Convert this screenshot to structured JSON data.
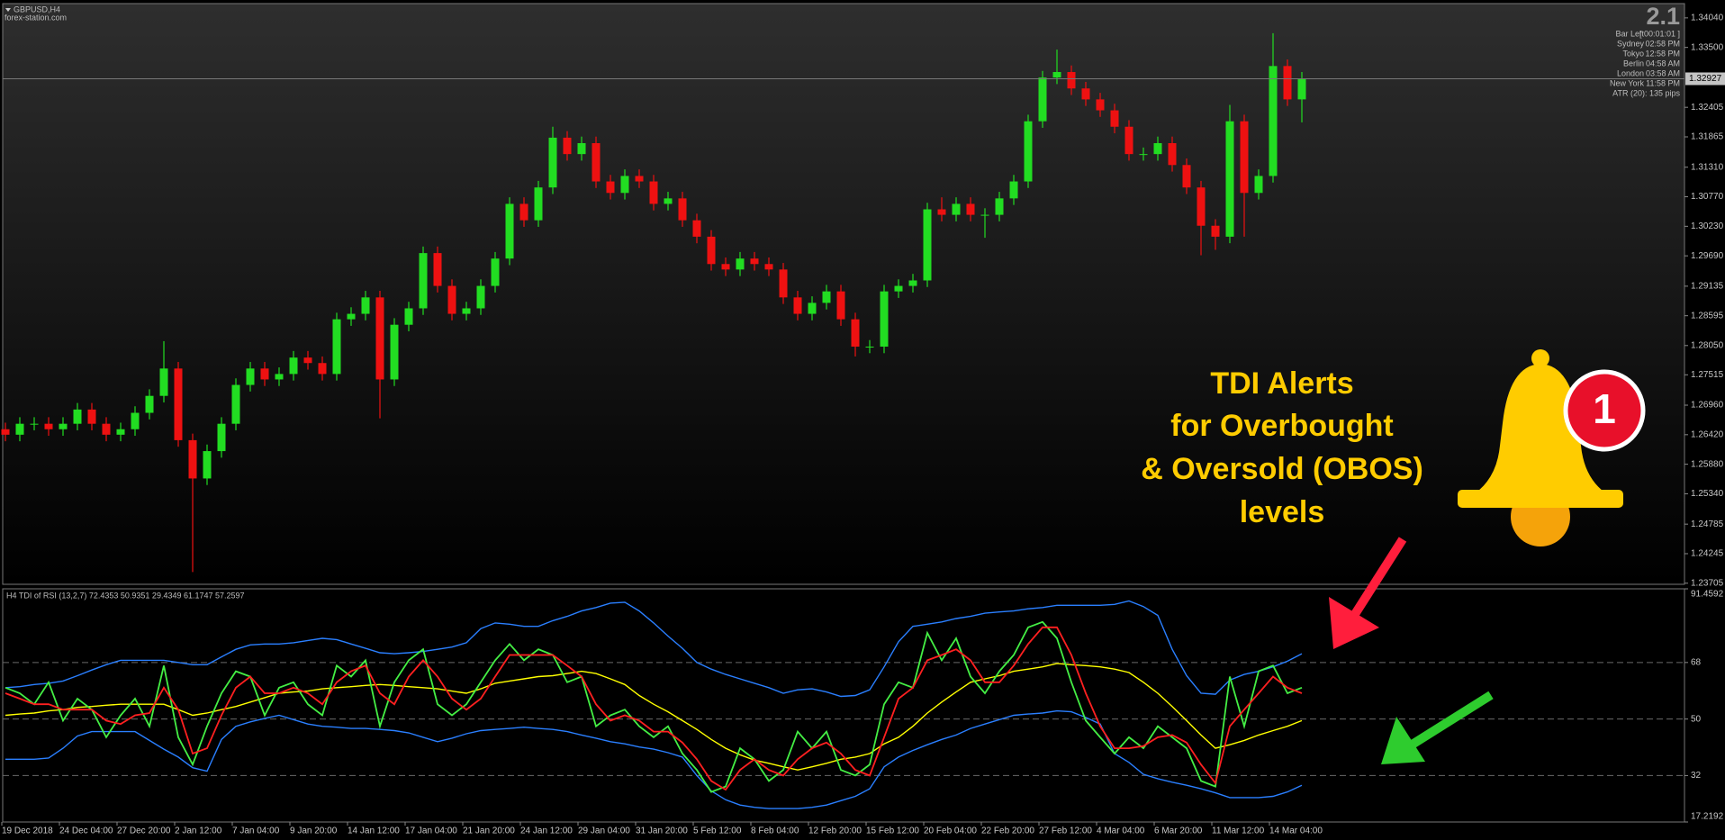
{
  "chart_data": [
    {
      "type": "candlestick",
      "title": "GBPUSD,H4",
      "subtitle": "forex-station.com",
      "up_color": "#22dd22",
      "down_color": "#ee1111",
      "open": [
        1.2652,
        1.2642,
        1.2662,
        1.2662,
        1.2652,
        1.2662,
        1.2688,
        1.2662,
        1.2642,
        1.2652,
        1.2682,
        1.2713,
        1.2763,
        1.2632,
        1.2562,
        1.2612,
        1.2662,
        1.2733,
        1.2763,
        1.2743,
        1.2753,
        1.2783,
        1.2773,
        1.2753,
        1.2853,
        1.2863,
        1.2893,
        1.2743,
        1.2843,
        1.2873,
        1.2974,
        1.2914,
        1.2863,
        1.2873,
        1.2914,
        1.2964,
        1.3064,
        1.3034,
        1.3094,
        1.3185,
        1.3155,
        1.3175,
        1.3105,
        1.3084,
        1.3115,
        1.3105,
        1.3064,
        1.3074,
        1.3034,
        1.3004,
        1.2954,
        1.2944,
        1.2964,
        1.2954,
        1.2944,
        1.2893,
        1.2863,
        1.2883,
        1.2904,
        1.2853,
        1.2803,
        1.2803,
        1.2904,
        1.2914,
        1.2924,
        1.3054,
        1.3044,
        1.3064,
        1.3044,
        1.3044,
        1.3074,
        1.3105,
        1.3215,
        1.3295,
        1.3305,
        1.3275,
        1.3255,
        1.3235,
        1.3205,
        1.3155,
        1.3155,
        1.3175,
        1.3135,
        1.3094,
        1.3024,
        1.3004,
        1.3215,
        1.3084,
        1.3115,
        1.3316,
        1.3255
      ],
      "high": [
        1.2664,
        1.2674,
        1.2674,
        1.2674,
        1.2674,
        1.27,
        1.27,
        1.2674,
        1.2664,
        1.2694,
        1.2725,
        1.2813,
        1.2775,
        1.2644,
        1.2624,
        1.2674,
        1.2745,
        1.2775,
        1.2775,
        1.2765,
        1.2795,
        1.2795,
        1.2785,
        1.2865,
        1.2875,
        1.2905,
        1.2905,
        1.2855,
        1.2885,
        1.2986,
        1.2986,
        1.2926,
        1.2885,
        1.2926,
        1.2976,
        1.3076,
        1.3076,
        1.3106,
        1.3205,
        1.3197,
        1.3187,
        1.3187,
        1.3117,
        1.3127,
        1.3127,
        1.3117,
        1.3086,
        1.3086,
        1.3046,
        1.3016,
        1.2966,
        1.2976,
        1.2976,
        1.2966,
        1.2956,
        1.2905,
        1.2895,
        1.2916,
        1.2916,
        1.2865,
        1.2815,
        1.2916,
        1.2926,
        1.2936,
        1.3066,
        1.3076,
        1.3076,
        1.3076,
        1.3056,
        1.3086,
        1.3117,
        1.3227,
        1.3307,
        1.3346,
        1.3317,
        1.3287,
        1.3267,
        1.3247,
        1.3217,
        1.3167,
        1.3187,
        1.3187,
        1.3147,
        1.3106,
        1.3036,
        1.3245,
        1.3227,
        1.3127,
        1.3376,
        1.3328,
        1.3305
      ],
      "low": [
        1.263,
        1.263,
        1.265,
        1.264,
        1.264,
        1.265,
        1.265,
        1.263,
        1.263,
        1.264,
        1.267,
        1.2701,
        1.262,
        1.2391,
        1.255,
        1.26,
        1.265,
        1.2721,
        1.2731,
        1.2731,
        1.2741,
        1.2761,
        1.2741,
        1.2741,
        1.2841,
        1.2851,
        1.2672,
        1.2731,
        1.2831,
        1.2861,
        1.2902,
        1.2851,
        1.2851,
        1.2861,
        1.2902,
        1.2952,
        1.3022,
        1.3022,
        1.3082,
        1.3143,
        1.3143,
        1.3093,
        1.3072,
        1.3072,
        1.3093,
        1.3052,
        1.3052,
        1.3022,
        1.2992,
        1.2942,
        1.2932,
        1.2932,
        1.2942,
        1.2932,
        1.2881,
        1.2851,
        1.2851,
        1.2871,
        1.2841,
        1.2785,
        1.2791,
        1.2791,
        1.2892,
        1.2902,
        1.2912,
        1.3032,
        1.3032,
        1.3032,
        1.3002,
        1.3032,
        1.3062,
        1.3093,
        1.3203,
        1.3283,
        1.3263,
        1.3243,
        1.3223,
        1.3193,
        1.3143,
        1.3143,
        1.3143,
        1.3123,
        1.3082,
        1.297,
        1.298,
        1.2992,
        1.3004,
        1.3072,
        1.3103,
        1.3243,
        1.3213
      ],
      "close": [
        1.2642,
        1.2662,
        1.2662,
        1.2652,
        1.2662,
        1.2688,
        1.2662,
        1.2642,
        1.2652,
        1.2682,
        1.2713,
        1.2763,
        1.2632,
        1.2562,
        1.2612,
        1.2662,
        1.2733,
        1.2763,
        1.2743,
        1.2753,
        1.2783,
        1.2773,
        1.2753,
        1.2853,
        1.2863,
        1.2893,
        1.2743,
        1.2843,
        1.2873,
        1.2974,
        1.2914,
        1.2863,
        1.2873,
        1.2914,
        1.2964,
        1.3064,
        1.3034,
        1.3094,
        1.3185,
        1.3155,
        1.3175,
        1.3105,
        1.3084,
        1.3115,
        1.3105,
        1.3064,
        1.3074,
        1.3034,
        1.3004,
        1.2954,
        1.2944,
        1.2964,
        1.2954,
        1.2944,
        1.2893,
        1.2863,
        1.2883,
        1.2904,
        1.2853,
        1.2803,
        1.2803,
        1.2904,
        1.2914,
        1.2924,
        1.3054,
        1.3044,
        1.3064,
        1.3044,
        1.3044,
        1.3074,
        1.3105,
        1.3215,
        1.3295,
        1.3305,
        1.3275,
        1.3255,
        1.3235,
        1.3205,
        1.3155,
        1.3155,
        1.3175,
        1.3135,
        1.3094,
        1.3024,
        1.3004,
        1.3215,
        1.3084,
        1.3115,
        1.3316,
        1.3255,
        1.3293
      ],
      "ylim": [
        1.23685,
        1.34301
      ],
      "yticks": [
        {
          "value": 1.3404,
          "label": "1.34040"
        },
        {
          "value": 1.335,
          "label": "1.33500"
        },
        {
          "value": 1.32405,
          "label": "1.32405"
        },
        {
          "value": 1.31865,
          "label": "1.31865"
        },
        {
          "value": 1.3131,
          "label": "1.31310"
        },
        {
          "value": 1.3077,
          "label": "1.30770"
        },
        {
          "value": 1.3023,
          "label": "1.30230"
        },
        {
          "value": 1.2969,
          "label": "1.29690"
        },
        {
          "value": 1.29135,
          "label": "1.29135"
        },
        {
          "value": 1.28595,
          "label": "1.28595"
        },
        {
          "value": 1.2805,
          "label": "1.28050"
        },
        {
          "value": 1.27515,
          "label": "1.27515"
        },
        {
          "value": 1.2696,
          "label": "1.26960"
        },
        {
          "value": 1.2642,
          "label": "1.26420"
        },
        {
          "value": 1.2588,
          "label": "1.25880"
        },
        {
          "value": 1.2534,
          "label": "1.25340"
        },
        {
          "value": 1.24785,
          "label": "1.24785"
        },
        {
          "value": 1.24245,
          "label": "1.24245"
        },
        {
          "value": 1.23705,
          "label": "1.23705"
        }
      ],
      "last_price": {
        "value": 1.32927,
        "label": "1.32927"
      },
      "info_panel": {
        "version": "2.1",
        "rows": [
          [
            "Bar Left",
            "[ 00:01:01 ]"
          ],
          [
            "Sydney",
            "02:58 PM"
          ],
          [
            "Tokyo",
            "12:58 PM"
          ],
          [
            "Berlin",
            "04:58 AM"
          ],
          [
            "London",
            "03:58 AM"
          ],
          [
            "New York",
            "11:58 PM"
          ]
        ],
        "atr": "ATR (20): 135 pips"
      }
    },
    {
      "type": "line",
      "title": "H4 TDI of RSI  (13,2,7) 72.4353 50.9351 29.4349 61.1747 57.2597",
      "categories": [
        "19 Dec 2018",
        null,
        null,
        null,
        "24 Dec 04:00",
        null,
        null,
        null,
        "27 Dec 20:00",
        null,
        null,
        null,
        "2 Jan 12:00",
        null,
        null,
        null,
        "7 Jan 04:00",
        null,
        null,
        null,
        "9 Jan 20:00",
        null,
        null,
        null,
        "14 Jan 12:00",
        null,
        null,
        null,
        "17 Jan 04:00",
        null,
        null,
        null,
        "21 Jan 20:00",
        null,
        null,
        null,
        "24 Jan 12:00",
        null,
        null,
        null,
        "29 Jan 04:00",
        null,
        null,
        null,
        "31 Jan 20:00",
        null,
        null,
        null,
        "5 Feb 12:00",
        null,
        null,
        null,
        "8 Feb 04:00",
        null,
        null,
        null,
        "12 Feb 20:00",
        null,
        null,
        null,
        "15 Feb 12:00",
        null,
        null,
        null,
        "20 Feb 04:00",
        null,
        null,
        null,
        "22 Feb 20:00",
        null,
        null,
        null,
        "27 Feb 12:00",
        null,
        null,
        null,
        "4 Mar 04:00",
        null,
        null,
        null,
        "6 Mar 20:00",
        null,
        null,
        null,
        "11 Mar 12:00",
        null,
        null,
        null,
        "14 Mar 04:00",
        null,
        null
      ],
      "ylim": [
        17.2192,
        91.4592
      ],
      "yticks": [
        17.2192,
        32,
        50,
        68,
        91.4592
      ],
      "levels": [
        32,
        50,
        68
      ],
      "series": [
        {
          "color": "#2a7fff",
          "values": [
            60.0,
            60.3,
            61.0,
            61.4,
            62.1,
            63.8,
            65.6,
            67.3,
            68.7,
            68.7,
            68.7,
            68.7,
            68.0,
            67.3,
            67.3,
            69.8,
            72.2,
            73.6,
            73.9,
            73.9,
            74.3,
            75.0,
            75.7,
            75.3,
            73.9,
            72.5,
            71.1,
            70.8,
            71.1,
            71.5,
            72.2,
            72.9,
            74.3,
            78.8,
            80.6,
            80.2,
            79.5,
            79.5,
            81.3,
            82.7,
            84.4,
            85.5,
            86.9,
            87.2,
            84.4,
            80.6,
            76.4,
            72.5,
            68.0,
            65.9,
            64.2,
            62.8,
            61.4,
            60.0,
            58.2,
            59.3,
            59.6,
            58.6,
            57.2,
            57.5,
            59.3,
            66.6,
            74.6,
            79.5,
            80.2,
            80.9,
            82.0,
            82.7,
            83.7,
            84.1,
            84.4,
            85.1,
            85.5,
            86.2,
            86.2,
            86.2,
            86.2,
            86.5,
            87.6,
            85.8,
            83.0,
            72.2,
            63.8,
            58.2,
            57.9,
            62.4,
            64.2,
            65.2,
            66.6,
            68.4,
            70.8
          ]
        },
        {
          "color": "#2a7fff",
          "values": [
            37.2,
            37.2,
            37.2,
            37.6,
            40.7,
            44.6,
            46.0,
            46.0,
            46.0,
            46.0,
            43.2,
            40.4,
            37.9,
            34.5,
            33.4,
            43.5,
            47.7,
            49.1,
            50.2,
            51.2,
            49.8,
            48.4,
            47.7,
            47.4,
            47.0,
            47.0,
            46.7,
            46.3,
            45.6,
            44.2,
            42.8,
            43.9,
            45.3,
            46.3,
            46.7,
            47.0,
            47.4,
            47.0,
            46.7,
            46.0,
            44.9,
            43.9,
            42.8,
            42.1,
            41.1,
            40.4,
            39.3,
            37.9,
            32.0,
            27.1,
            24.3,
            22.6,
            21.9,
            21.5,
            21.5,
            21.5,
            21.9,
            22.6,
            24.0,
            25.4,
            27.8,
            34.8,
            37.9,
            40.0,
            41.8,
            43.5,
            44.9,
            47.0,
            48.4,
            49.8,
            51.2,
            51.6,
            51.9,
            52.6,
            52.3,
            50.5,
            48.4,
            39.0,
            36.2,
            32.4,
            31.0,
            29.9,
            28.9,
            27.8,
            26.5,
            25.0,
            25.0,
            25.0,
            25.4,
            26.8,
            28.9
          ]
        },
        {
          "color": "#ffff00",
          "values": [
            51.2,
            51.6,
            51.9,
            52.6,
            53.0,
            53.7,
            54.0,
            54.4,
            54.7,
            54.7,
            54.7,
            54.7,
            53.0,
            51.2,
            51.9,
            53.0,
            54.0,
            55.4,
            56.8,
            58.2,
            58.6,
            58.9,
            59.6,
            60.0,
            60.3,
            60.7,
            61.0,
            60.7,
            60.3,
            60.0,
            59.6,
            58.9,
            58.2,
            59.6,
            61.4,
            62.1,
            62.8,
            63.5,
            63.8,
            64.5,
            65.2,
            64.5,
            62.8,
            61.0,
            57.5,
            54.7,
            52.3,
            49.5,
            46.7,
            43.5,
            40.7,
            38.6,
            36.9,
            35.9,
            34.8,
            33.8,
            34.8,
            35.9,
            37.2,
            37.9,
            39.0,
            42.1,
            44.2,
            47.7,
            51.9,
            55.4,
            58.6,
            61.7,
            62.8,
            63.8,
            65.2,
            65.9,
            66.6,
            67.7,
            67.3,
            67.0,
            66.6,
            65.9,
            64.8,
            61.7,
            58.2,
            54.0,
            49.5,
            44.9,
            40.7,
            41.8,
            43.2,
            44.9,
            46.3,
            47.7,
            49.5
          ]
        },
        {
          "color": "#44ee44",
          "values": [
            60.0,
            58.2,
            54.7,
            61.7,
            49.5,
            56.5,
            53.0,
            44.2,
            51.2,
            56.5,
            47.7,
            67.0,
            44.2,
            35.5,
            47.7,
            58.2,
            65.2,
            63.5,
            51.2,
            60.0,
            61.7,
            54.7,
            51.2,
            67.0,
            63.5,
            68.7,
            47.7,
            61.7,
            68.7,
            72.2,
            54.7,
            51.2,
            54.7,
            61.7,
            68.7,
            73.9,
            68.7,
            72.2,
            70.4,
            61.7,
            63.5,
            47.7,
            51.2,
            53.0,
            47.7,
            44.2,
            47.7,
            39.0,
            33.8,
            26.8,
            28.5,
            40.7,
            37.2,
            30.3,
            33.8,
            46.0,
            40.7,
            46.0,
            33.8,
            32.0,
            35.5,
            54.7,
            61.7,
            60.0,
            77.4,
            68.7,
            75.7,
            63.5,
            58.2,
            65.2,
            70.4,
            79.2,
            80.9,
            75.7,
            61.7,
            49.5,
            44.2,
            39.0,
            44.2,
            40.7,
            47.7,
            44.2,
            40.7,
            30.3,
            28.5,
            63.5,
            47.7,
            65.2,
            67.0,
            58.2,
            60.0
          ]
        },
        {
          "color": "#ff2020",
          "values": [
            58.2,
            56.5,
            54.7,
            54.7,
            53.0,
            53.0,
            53.0,
            49.5,
            48.4,
            51.2,
            51.9,
            60.0,
            53.0,
            39.0,
            40.7,
            51.2,
            60.0,
            63.5,
            58.2,
            58.2,
            60.0,
            58.2,
            54.7,
            61.7,
            65.2,
            67.0,
            58.2,
            54.7,
            63.5,
            68.7,
            63.5,
            56.5,
            53.0,
            56.5,
            63.5,
            70.4,
            70.4,
            70.4,
            70.4,
            67.0,
            63.5,
            54.7,
            49.5,
            51.2,
            49.5,
            46.0,
            46.0,
            42.5,
            37.2,
            30.3,
            27.5,
            33.8,
            37.2,
            33.8,
            32.0,
            37.2,
            40.7,
            42.5,
            39.0,
            33.8,
            32.0,
            44.2,
            56.5,
            60.0,
            68.7,
            70.4,
            72.2,
            68.7,
            61.7,
            61.7,
            67.0,
            73.9,
            79.2,
            79.2,
            70.4,
            58.2,
            47.7,
            40.7,
            40.7,
            41.4,
            44.2,
            44.9,
            42.5,
            35.5,
            29.6,
            47.7,
            53.0,
            58.2,
            63.5,
            60.0,
            58.2
          ]
        }
      ]
    }
  ],
  "overlay": {
    "callout": [
      "TDI Alerts",
      "for Overbought",
      "& Oversold (OBOS)",
      "levels"
    ],
    "badge": "1"
  }
}
